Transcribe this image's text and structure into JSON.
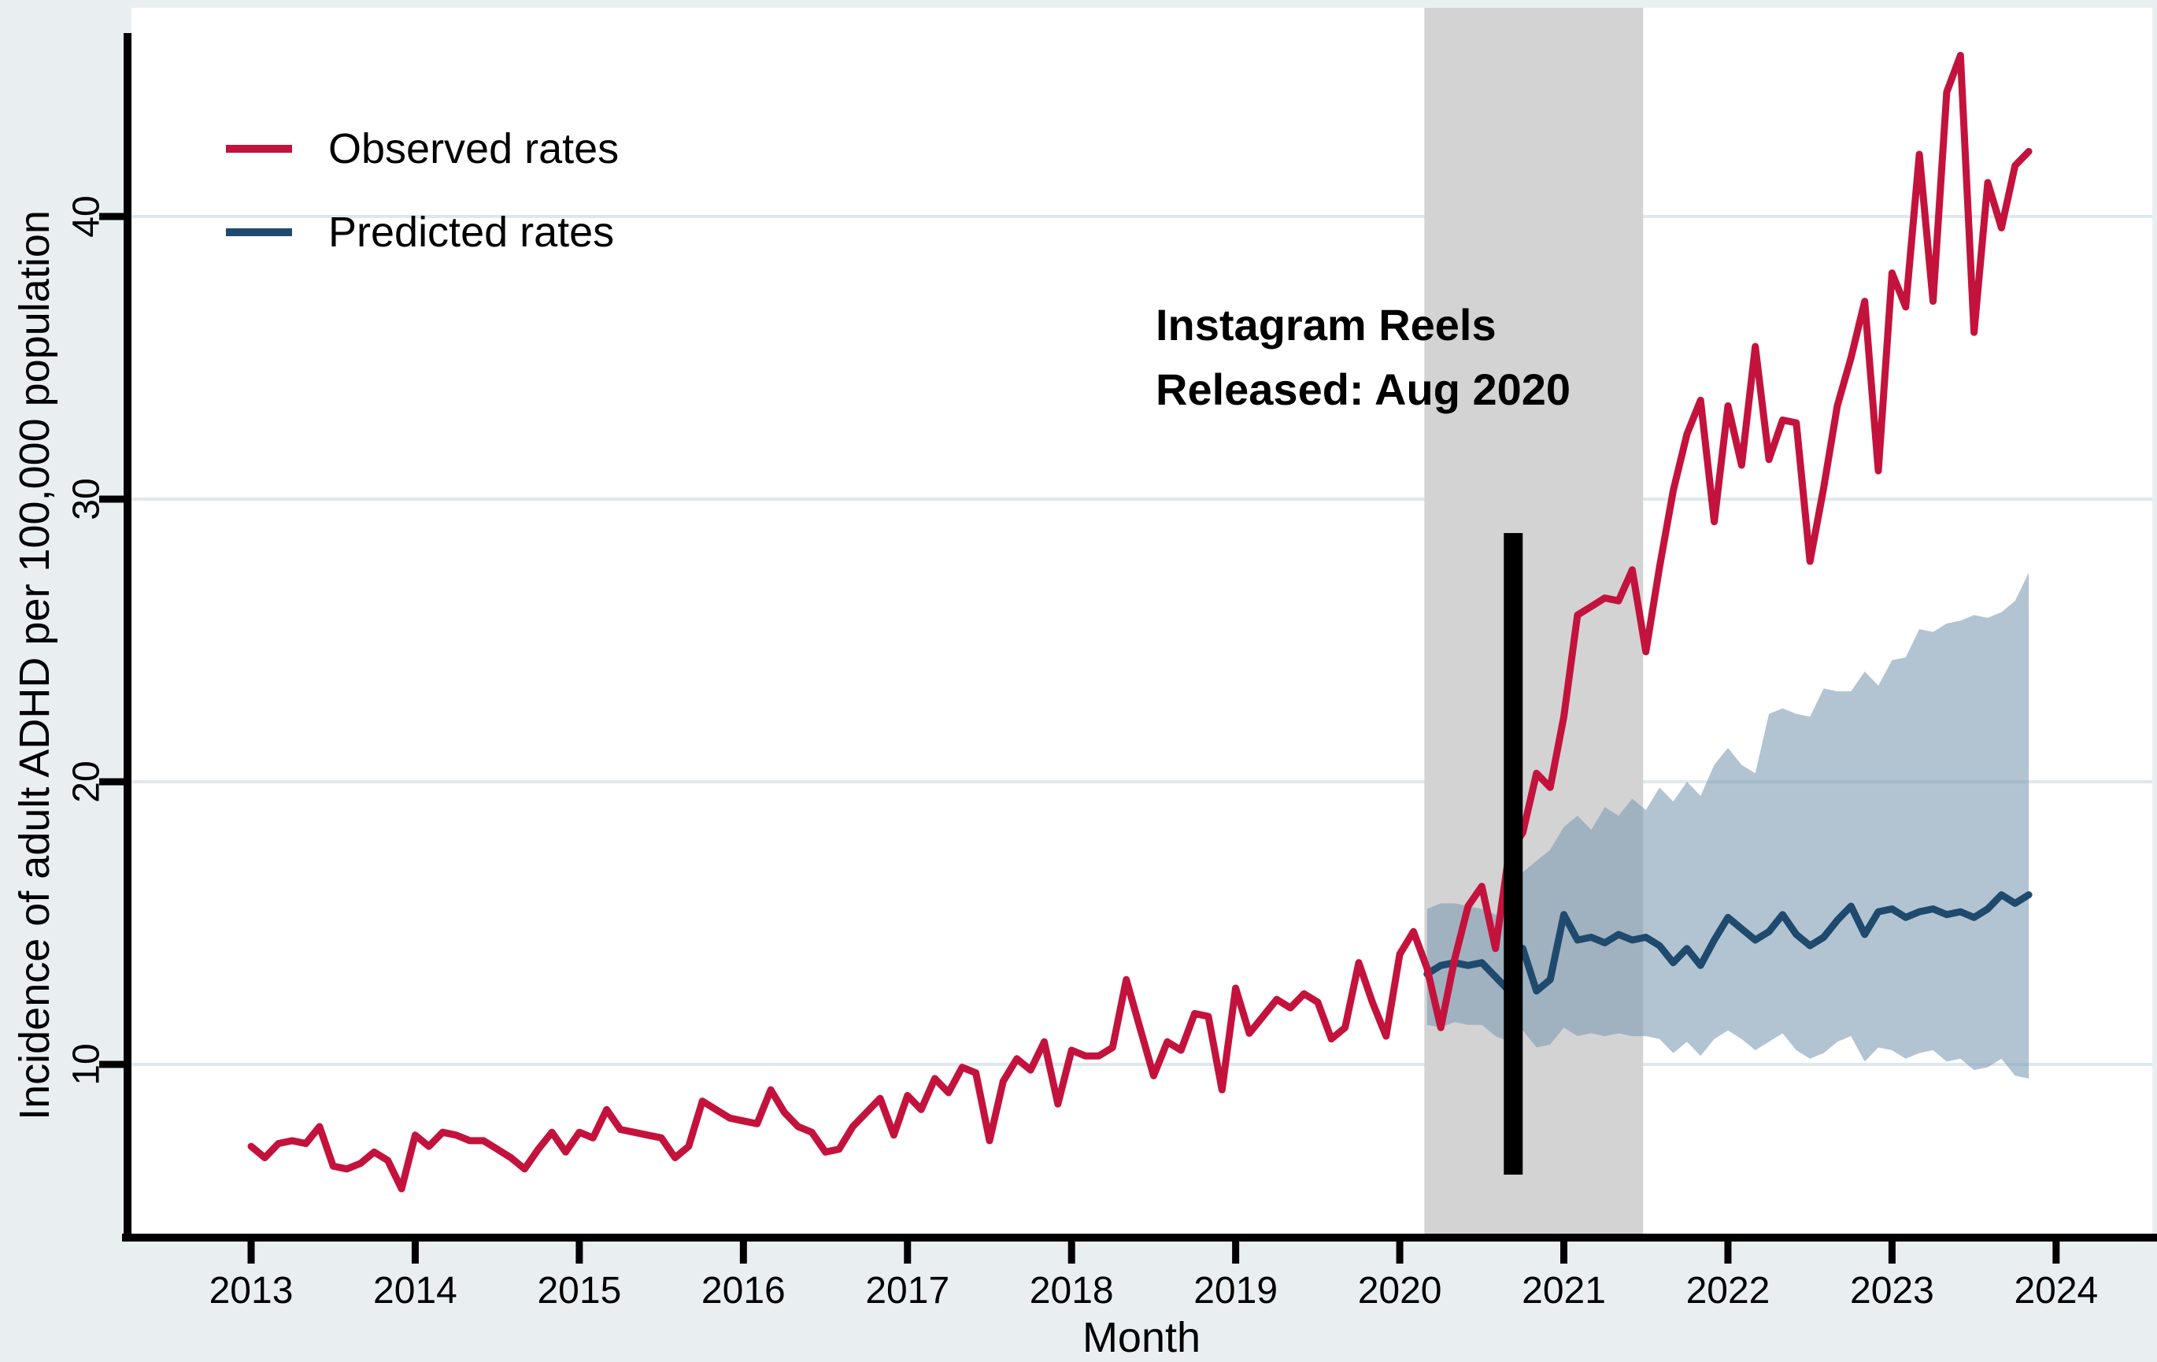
{
  "figure": {
    "kind": "interrupted time-series line chart",
    "background_color": "#e9eff1",
    "plot_background_color": "#ffffff",
    "gridline_color": "#dfe9ed",
    "axis_color": "#000000"
  },
  "legend": {
    "items": [
      {
        "label": "Observed rates",
        "color": "#c3133d"
      },
      {
        "label": "Predicted rates",
        "color": "#1f4a6e"
      }
    ]
  },
  "annotation": {
    "line1": "Instagram Reels",
    "line2": "Released: Aug 2020"
  },
  "chart_data": {
    "type": "line",
    "title": "",
    "xlabel": "Month",
    "ylabel": "Incidence of adult ADHD per 100,000 population",
    "x_unit": "monthly",
    "x_start": "2013-01",
    "x_end": "2023-11",
    "x_tick_labels": [
      "2013",
      "2014",
      "2015",
      "2016",
      "2017",
      "2018",
      "2019",
      "2020",
      "2021",
      "2022",
      "2023",
      "2024"
    ],
    "y_ticks": [
      10,
      20,
      30,
      40
    ],
    "y_tick_labels": [
      "10",
      "20",
      "30",
      "40"
    ],
    "ylim": [
      3.9,
      47.4
    ],
    "grid": "horizontal",
    "legend_position": "top-left-inside",
    "series": [
      {
        "name": "Observed rates",
        "color": "#c3133d",
        "start_month_index": 0,
        "values": [
          7.1,
          6.7,
          7.2,
          7.3,
          7.2,
          7.8,
          6.4,
          6.3,
          6.5,
          6.9,
          6.6,
          5.6,
          7.5,
          7.1,
          7.6,
          7.5,
          7.3,
          7.3,
          7.0,
          6.7,
          6.3,
          7.0,
          7.6,
          6.9,
          7.6,
          7.4,
          8.4,
          7.7,
          7.6,
          7.5,
          7.4,
          6.7,
          7.1,
          8.7,
          8.4,
          8.1,
          8.0,
          7.9,
          9.1,
          8.3,
          7.8,
          7.6,
          6.9,
          7.0,
          7.8,
          8.3,
          8.8,
          7.5,
          8.9,
          8.4,
          9.5,
          9.0,
          9.9,
          9.7,
          7.3,
          9.4,
          10.2,
          9.8,
          10.8,
          8.6,
          10.5,
          10.3,
          10.3,
          10.6,
          13.0,
          11.3,
          9.6,
          10.8,
          10.5,
          11.8,
          11.7,
          9.1,
          12.7,
          11.1,
          11.7,
          12.3,
          12.0,
          12.5,
          12.2,
          10.9,
          11.3,
          13.6,
          12.2,
          11.0,
          13.9,
          14.7,
          13.4,
          11.3,
          13.7,
          15.6,
          16.3,
          14.1,
          17.5,
          18.2,
          20.3,
          19.8,
          22.3,
          25.9,
          26.2,
          26.5,
          26.4,
          27.5,
          24.6,
          27.6,
          30.3,
          32.3,
          33.5,
          29.2,
          33.3,
          31.2,
          35.4,
          31.4,
          32.8,
          32.7,
          27.8,
          30.4,
          33.3,
          35.0,
          37.0,
          31.0,
          38.0,
          36.8,
          42.2,
          37.0,
          44.4,
          45.7,
          35.9,
          41.2,
          39.6,
          41.8,
          42.3
        ]
      },
      {
        "name": "Predicted rates",
        "color": "#1f4a6e",
        "start_month_index": 86,
        "values": [
          13.2,
          13.5,
          13.6,
          13.5,
          13.6,
          13.1,
          12.6,
          14.1,
          12.6,
          13.0,
          15.3,
          14.4,
          14.5,
          14.3,
          14.6,
          14.4,
          14.5,
          14.2,
          13.6,
          14.1,
          13.5,
          14.4,
          15.2,
          14.8,
          14.4,
          14.7,
          15.3,
          14.6,
          14.2,
          14.5,
          15.1,
          15.6,
          14.6,
          15.4,
          15.5,
          15.2,
          15.4,
          15.5,
          15.3,
          15.4,
          15.2,
          15.5,
          16.0,
          15.7,
          16.0
        ]
      }
    ],
    "confidence_band": {
      "series": "Predicted rates",
      "color": "rgba(127,156,180,0.6)",
      "start_month_index": 86,
      "lower": [
        11.4,
        11.3,
        11.5,
        11.4,
        11.4,
        11.0,
        10.8,
        11.2,
        10.6,
        10.7,
        11.3,
        11.0,
        11.1,
        11.0,
        11.1,
        11.0,
        11.0,
        10.9,
        10.4,
        10.8,
        10.3,
        10.9,
        11.2,
        10.9,
        10.5,
        10.8,
        11.1,
        10.5,
        10.2,
        10.4,
        10.8,
        11.0,
        10.1,
        10.6,
        10.5,
        10.2,
        10.4,
        10.5,
        10.1,
        10.2,
        9.8,
        9.9,
        10.2,
        9.6,
        9.5
      ],
      "upper": [
        15.5,
        15.7,
        15.7,
        15.6,
        15.5,
        15.3,
        15.1,
        16.8,
        17.2,
        17.6,
        18.4,
        18.8,
        18.3,
        19.1,
        18.8,
        19.4,
        19.0,
        19.8,
        19.3,
        20.0,
        19.5,
        20.6,
        21.2,
        20.6,
        20.3,
        22.4,
        22.6,
        22.4,
        22.3,
        23.3,
        23.2,
        23.2,
        23.9,
        23.4,
        24.3,
        24.4,
        25.4,
        25.3,
        25.6,
        25.7,
        25.9,
        25.8,
        26.0,
        26.4,
        27.4
      ]
    },
    "covid_shading": {
      "color": "#d3d3d3",
      "start_month_index": 85.8,
      "end_month_index": 101.8
    },
    "event_bar": {
      "label": "Instagram Reels Released: Aug 2020",
      "month_index": 92.3,
      "y_from": 6.1,
      "y_to": 28.8,
      "color": "#000000"
    }
  }
}
